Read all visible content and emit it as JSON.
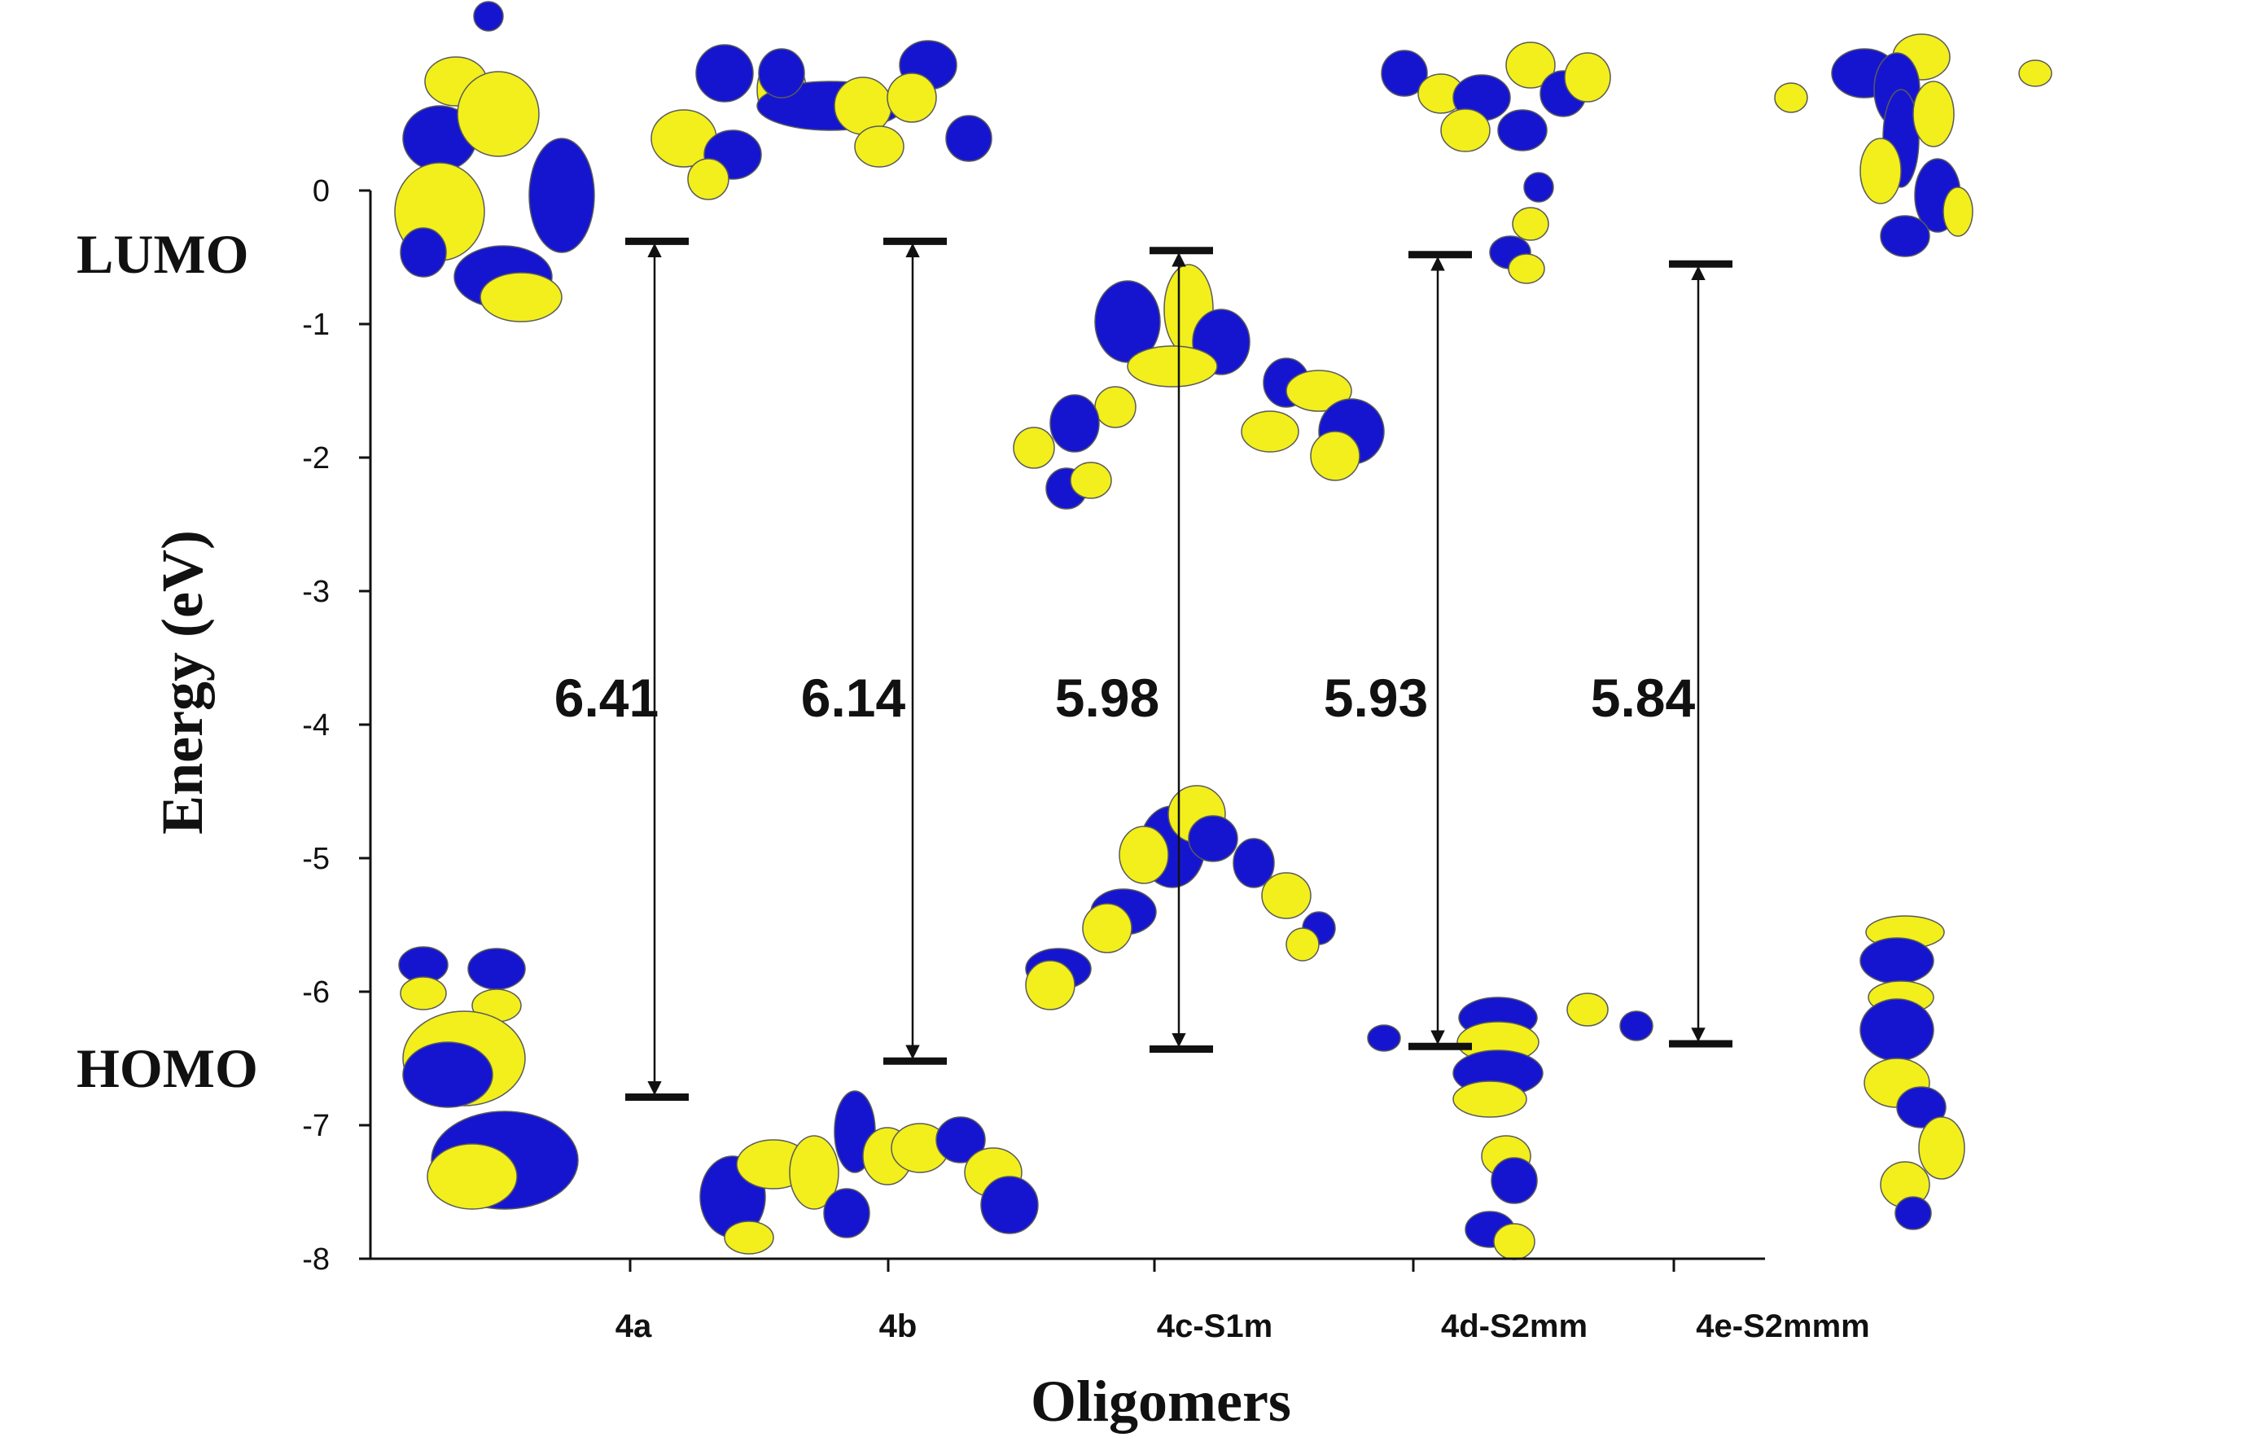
{
  "chart_data": {
    "type": "energy-level diagram",
    "xlabel": "Oligomers",
    "ylabel": "Energy (eV)",
    "ylim": [
      -8,
      0
    ],
    "yticks": [
      0,
      -1,
      -2,
      -3,
      -4,
      -5,
      -6,
      -7,
      -8
    ],
    "categories": [
      "4a",
      "4b",
      "4c-S1m",
      "4d-S2mm",
      "4e-S2mmm"
    ],
    "series": [
      {
        "name": "LUMO",
        "values": [
          -0.38,
          -0.38,
          -0.45,
          -0.48,
          -0.55
        ]
      },
      {
        "name": "HOMO",
        "values": [
          -6.79,
          -6.52,
          -6.43,
          -6.41,
          -6.39
        ]
      }
    ],
    "gaps": [
      "6.41",
      "6.14",
      "5.98",
      "5.93",
      "5.84"
    ],
    "grid": false,
    "legend": "none",
    "orbital_colors": {
      "positive": "#1515d0",
      "negative": "#f2ef1c"
    }
  }
}
